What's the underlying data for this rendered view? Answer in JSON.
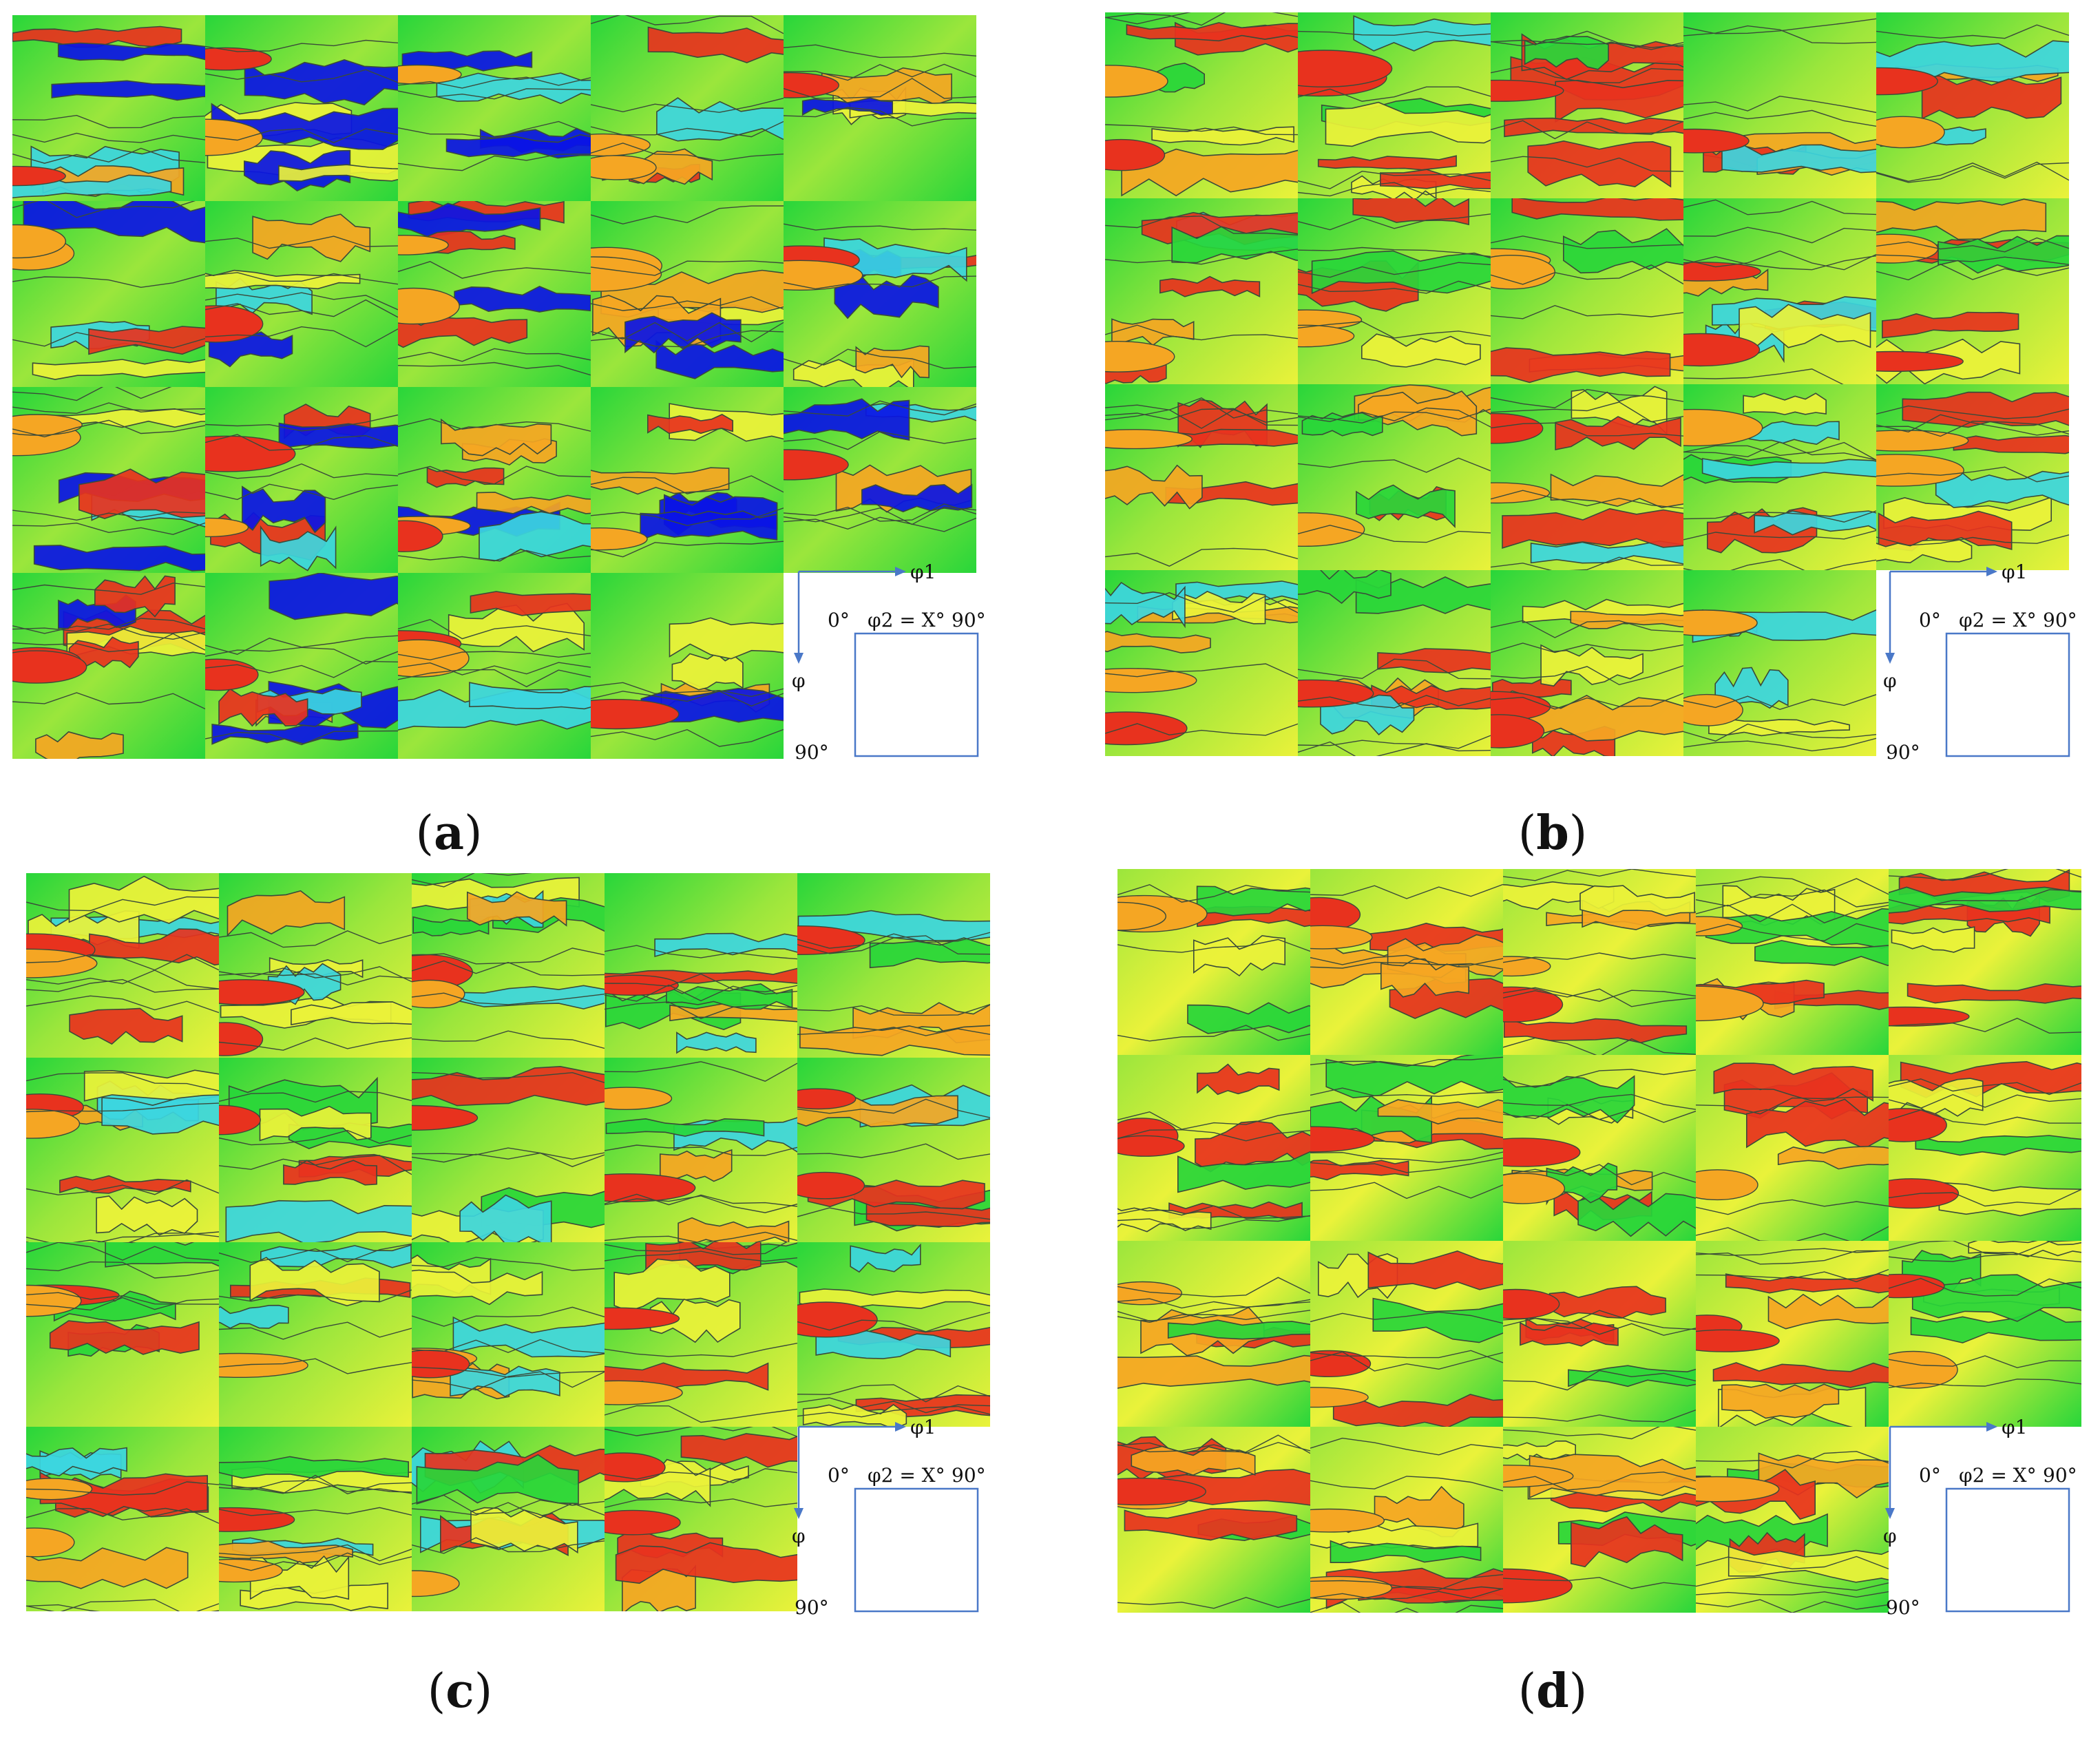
{
  "panels": [
    {
      "id": "a",
      "caption_label": "(a)",
      "caption_letter": "a",
      "rows": 4,
      "cols": 5,
      "cells_in_last_row": 4,
      "palette": "blue-heavy"
    },
    {
      "id": "b",
      "caption_label": "(b)",
      "caption_letter": "b",
      "rows": 4,
      "cols": 5,
      "cells_in_last_row": 4,
      "palette": "mixed"
    },
    {
      "id": "c",
      "caption_label": "(c)",
      "caption_letter": "c",
      "rows": 4,
      "cols": 5,
      "cells_in_last_row": 4,
      "palette": "green-yellow"
    },
    {
      "id": "d",
      "caption_label": "(d)",
      "caption_letter": "d",
      "rows": 4,
      "cols": 5,
      "cells_in_last_row": 4,
      "palette": "red-heavy"
    }
  ],
  "legend": {
    "phi1_label": "φ1",
    "phi2_label": "φ2 = X°",
    "phi_label": "φ",
    "start_label": "0°",
    "end_label": "90°",
    "bottom_label": "90°"
  },
  "colors": {
    "blue": "#0a14e6",
    "cyan": "#3cd6e0",
    "green": "#28d63a",
    "light_green": "#9be63c",
    "yellow": "#eaf23a",
    "orange": "#f5a623",
    "red": "#e8321e",
    "contour": "#3a4a3a",
    "axis_blue": "#4a78c8"
  }
}
